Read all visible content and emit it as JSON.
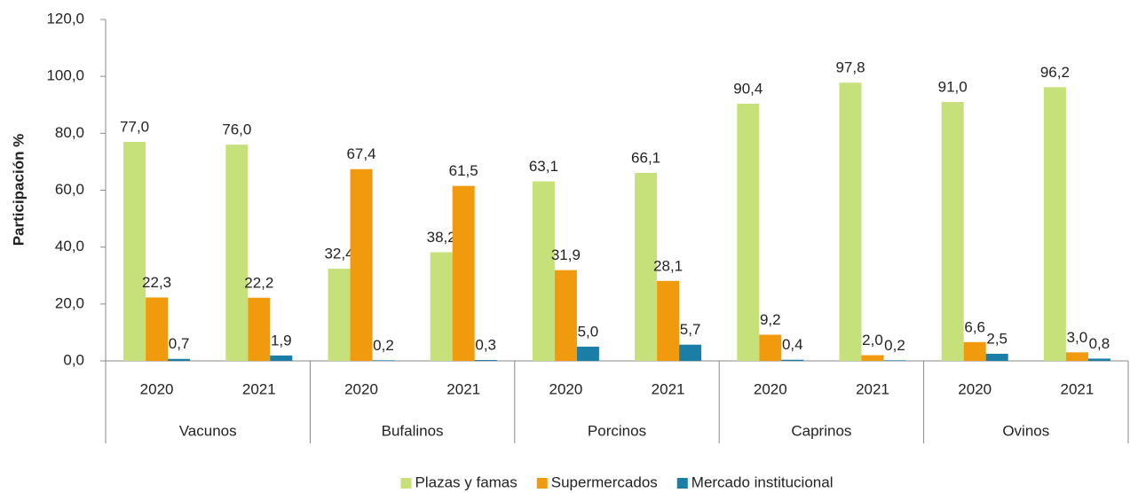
{
  "chart_data": {
    "type": "bar",
    "y_label": "Participación  %",
    "categories": [
      "2020",
      "2021",
      "2020",
      "2021",
      "2020",
      "2021",
      "2020",
      "2021",
      "2020",
      "2021"
    ],
    "groups": [
      "Vacunos",
      "Bufalinos",
      "Porcinos",
      "Caprinos",
      "Ovinos"
    ],
    "series": [
      {
        "name": "Plazas y famas",
        "color": "#c6e07a",
        "values": [
          77.0,
          76.0,
          32.4,
          38.2,
          63.1,
          66.1,
          90.4,
          97.8,
          91.0,
          96.2
        ],
        "value_labels": [
          "77,0",
          "76,0",
          "32,4",
          "38,2",
          "63,1",
          "66,1",
          "90,4",
          "97,8",
          "91,0",
          "96,2"
        ]
      },
      {
        "name": "Supermercados",
        "color": "#f19a0e",
        "values": [
          22.3,
          22.2,
          67.4,
          61.5,
          31.9,
          28.1,
          9.2,
          2.0,
          6.6,
          3.0
        ],
        "value_labels": [
          "22,3",
          "22,2",
          "67,4",
          "61,5",
          "31,9",
          "28,1",
          "9,2",
          "2,0",
          "6,6",
          "3,0"
        ]
      },
      {
        "name": "Mercado institucional",
        "color": "#1b7ea6",
        "values": [
          0.7,
          1.9,
          0.2,
          0.3,
          5.0,
          5.7,
          0.4,
          0.2,
          2.5,
          0.8
        ],
        "value_labels": [
          "0,7",
          "1,9",
          "0,2",
          "0,3",
          "5,0",
          "5,7",
          "0,4",
          "0,2",
          "2,5",
          "0,8"
        ]
      }
    ],
    "ylim": [
      0,
      120
    ],
    "yticks": [
      {
        "value": 0,
        "label": "0,0"
      },
      {
        "value": 20,
        "label": "20,0"
      },
      {
        "value": 40,
        "label": "40,0"
      },
      {
        "value": 60,
        "label": "60,0"
      },
      {
        "value": 80,
        "label": "80,0"
      },
      {
        "value": 100,
        "label": "100,0"
      },
      {
        "value": 120,
        "label": "120,0"
      }
    ],
    "legend": "bottom"
  }
}
